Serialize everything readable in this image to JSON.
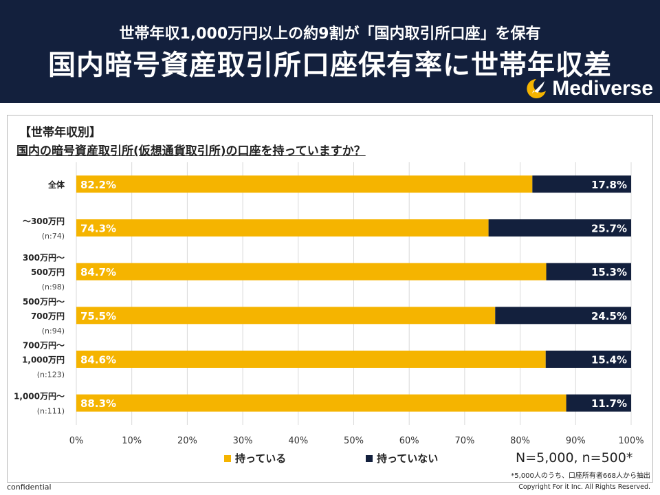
{
  "header": {
    "subtitle": "世帯年収1,000万円以上の約9割が「国内取引所口座」を保有",
    "title": "国内暗号資産取引所口座保有率に世帯年収差",
    "brand": "Mediverse"
  },
  "chart_header": {
    "section_label": "【世帯年収別】",
    "question": "国内の暗号資産取引所(仮想通貨取引所)の口座を持っていますか？"
  },
  "chart_data": {
    "type": "bar",
    "orientation": "horizontal",
    "stacked": true,
    "categories": [
      [
        "全体"
      ],
      [
        "～300万円",
        "(n:74)"
      ],
      [
        "300万円～",
        "500万円",
        "(n:98)"
      ],
      [
        "500万円～",
        "700万円",
        "(n:94)"
      ],
      [
        "700万円～",
        "1,000万円",
        "(n:123)"
      ],
      [
        "1,000万円～",
        "(n:111)"
      ]
    ],
    "series": [
      {
        "name": "持っている",
        "color": "#f5b400",
        "values": [
          82.2,
          74.3,
          84.7,
          75.5,
          84.6,
          88.3
        ],
        "labels": [
          "82.2%",
          "74.3%",
          "84.7%",
          "75.5%",
          "84.6%",
          "88.3%"
        ]
      },
      {
        "name": "持っていない",
        "color": "#13203d",
        "values": [
          17.8,
          25.7,
          15.3,
          24.5,
          15.4,
          11.7
        ],
        "labels": [
          "17.8%",
          "25.7%",
          "15.3%",
          "24.5%",
          "15.4%",
          "11.7%"
        ]
      }
    ],
    "xlim": [
      0,
      100
    ],
    "xticks": [
      "0%",
      "10%",
      "20%",
      "30%",
      "40%",
      "50%",
      "60%",
      "70%",
      "80%",
      "90%",
      "100%"
    ],
    "grid": true,
    "legend": "bottom"
  },
  "notes": {
    "sample": "N=5,000, n=500*",
    "sub": "*5,000人のうち、口座所有者668人から抽出"
  },
  "footer": {
    "confidential": "confidential",
    "copyright": "Copyright For it Inc. All Rights Reserved."
  }
}
